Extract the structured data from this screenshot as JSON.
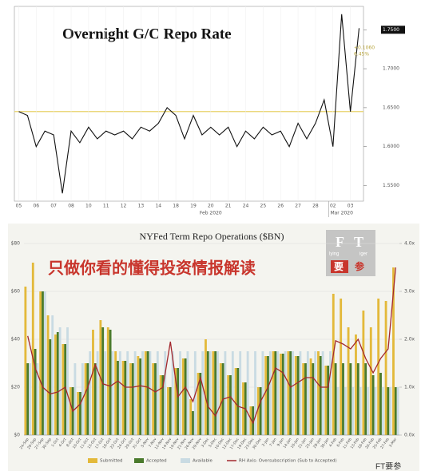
{
  "chart_data": [
    {
      "type": "line",
      "title": "Overnight G/C Repo Rate",
      "color": "#111111",
      "categories": [
        "05",
        null,
        "06",
        null,
        "07",
        null,
        "08",
        null,
        "10",
        null,
        "11",
        null,
        "12",
        null,
        "13",
        null,
        "14",
        null,
        "18",
        null,
        "19",
        null,
        "20",
        null,
        "21",
        null,
        "24",
        null,
        "25",
        null,
        "26",
        null,
        "27",
        null,
        "28",
        null,
        "02",
        null,
        "03",
        null
      ],
      "values": [
        1.645,
        1.64,
        1.6,
        1.62,
        1.615,
        1.54,
        1.62,
        1.605,
        1.625,
        1.61,
        1.62,
        1.615,
        1.62,
        1.61,
        1.625,
        1.62,
        1.63,
        1.65,
        1.64,
        1.61,
        1.64,
        1.615,
        1.625,
        1.615,
        1.625,
        1.6,
        1.62,
        1.61,
        1.625,
        1.615,
        1.62,
        1.6,
        1.63,
        1.61,
        1.63,
        1.66,
        1.6,
        1.77,
        1.645,
        1.752
      ],
      "x_groups": [
        "Feb 2020",
        "Mar 2020"
      ],
      "hline": 1.645,
      "hline_color": "#e8d36a",
      "annotations": [
        "+0.1060",
        "6.45%"
      ],
      "ylim": [
        1.53,
        1.78
      ],
      "yticks": [
        {
          "value": 1.55,
          "label": "1.5500"
        },
        {
          "value": 1.6,
          "label": "1.6000"
        },
        {
          "value": 1.65,
          "label": "1.6500"
        },
        {
          "value": 1.7,
          "label": "1.7000"
        },
        {
          "value": 1.75,
          "label": "1.7500"
        }
      ],
      "highlight_tick": 4
    },
    {
      "type": "bar",
      "title": "NYFed Term Repo Operations ($BN)",
      "categories": [
        "24-Sep",
        "26-Sep",
        "27-Sep",
        "30-Sep",
        "1-Oct",
        "4-Oct",
        "8-Oct",
        "10-Oct",
        "11-Oct",
        "15-Oct",
        "17-Oct",
        "18-Oct",
        "22-Oct",
        "24-Oct",
        "29-Oct",
        "31-Oct",
        "5-Nov",
        "7-Nov",
        "12-Nov",
        "14-Nov",
        "19-Nov",
        "21-Nov",
        "26-Nov",
        "29-Nov",
        "3-Dec",
        "5-Dec",
        "10-Dec",
        "12-Dec",
        "17-Dec",
        "19-Dec",
        "23-Dec",
        "30-Dec",
        "2-Jan",
        "7-Jan",
        "9-Jan",
        "14-Jan",
        "16-Jan",
        "21-Jan",
        "23-Jan",
        "28-Jan",
        "30-Jan",
        "4-Feb",
        "6-Feb",
        "11-Feb",
        "13-Feb",
        "18-Feb",
        "20-Feb",
        "25-Feb",
        "27-Feb",
        "3-Mar"
      ],
      "series": [
        {
          "name": "Submitted",
          "color": "#e3b93a",
          "values": [
            62,
            72,
            60,
            50,
            42,
            38,
            20,
            18,
            30,
            44,
            48,
            45,
            35,
            31,
            30,
            33,
            35,
            30,
            25,
            20,
            28,
            32,
            15,
            26,
            40,
            35,
            30,
            25,
            28,
            22,
            12,
            20,
            33,
            35,
            34,
            35,
            33,
            30,
            32,
            35,
            29,
            59,
            57,
            45,
            42,
            52,
            45,
            57,
            56,
            70
          ]
        },
        {
          "name": "Accepted",
          "color": "#4a7a2c",
          "values": [
            30,
            36,
            60,
            40,
            43,
            38,
            20,
            18,
            30,
            30,
            45,
            44,
            31,
            31,
            30,
            32,
            35,
            30,
            25,
            20,
            28,
            32,
            10,
            26,
            35,
            35,
            30,
            25,
            28,
            22,
            12,
            20,
            33,
            35,
            34,
            35,
            33,
            30,
            30,
            33,
            29,
            30,
            30,
            30,
            30,
            30,
            25,
            26,
            20,
            20
          ]
        },
        {
          "name": "Available",
          "color": "#c9dbe3",
          "values": [
            30,
            30,
            60,
            50,
            45,
            45,
            30,
            30,
            35,
            35,
            35,
            35,
            35,
            35,
            35,
            35,
            35,
            35,
            35,
            35,
            35,
            35,
            35,
            35,
            35,
            35,
            35,
            35,
            35,
            35,
            35,
            35,
            35,
            35,
            35,
            35,
            35,
            35,
            35,
            35,
            35,
            20,
            20,
            20,
            20,
            20,
            20,
            20,
            20,
            20
          ]
        },
        {
          "name": "RH Axis: Oversubscription (Sub to Accepted)",
          "color": "#a3282d",
          "axis": "y2",
          "values": [
            2.07,
            1.4,
            1.0,
            0.86,
            0.9,
            1.0,
            0.5,
            0.65,
            1.0,
            1.47,
            1.07,
            1.02,
            1.13,
            1.0,
            1.0,
            1.03,
            1.0,
            0.9,
            1.0,
            1.95,
            0.8,
            1.0,
            0.7,
            1.2,
            0.6,
            0.4,
            0.75,
            0.8,
            0.6,
            0.55,
            0.25,
            0.7,
            1.0,
            1.4,
            1.3,
            1.0,
            1.1,
            1.2,
            1.2,
            1.0,
            1.0,
            1.97,
            1.9,
            1.8,
            2.0,
            1.6,
            1.3,
            1.6,
            1.8,
            3.5
          ]
        }
      ],
      "ylim": [
        0,
        80
      ],
      "yticks": [
        {
          "value": 0,
          "label": "$0"
        },
        {
          "value": 20,
          "label": "$20"
        },
        {
          "value": 40,
          "label": "$40"
        },
        {
          "value": 60,
          "label": "$60"
        },
        {
          "value": 80,
          "label": "$80"
        }
      ],
      "y2lim": [
        0,
        4
      ],
      "y2ticks": [
        {
          "value": 0,
          "label": "0.0x"
        },
        {
          "value": 1,
          "label": "1.0x"
        },
        {
          "value": 2,
          "label": "2.0x"
        },
        {
          "value": 3,
          "label": "3.0x"
        },
        {
          "value": 4,
          "label": "4.0x"
        }
      ]
    }
  ],
  "watermark": "只做你看的懂得投资情报解读",
  "logo": {
    "f": "F",
    "t": "T",
    "lying": "lying",
    "iger": "iger",
    "yao": "要",
    "can": "参"
  },
  "footer": "FT要参"
}
